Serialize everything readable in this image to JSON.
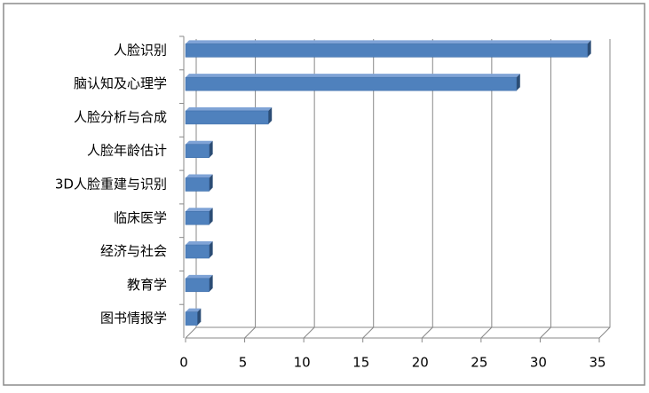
{
  "chart_data": {
    "type": "bar",
    "orientation": "horizontal",
    "categories": [
      "人脸识别",
      "脑认知及心理学",
      "人脸分析与合成",
      "人脸年龄估计",
      "3D人脸重建与识别",
      "临床医学",
      "经济与社会",
      "教育学",
      "图书情报学"
    ],
    "values": [
      34,
      28,
      7,
      2,
      2,
      2,
      2,
      2,
      1
    ],
    "color": "#4f81bd",
    "xlim": [
      0,
      35
    ],
    "xticks": [
      0,
      5,
      10,
      15,
      20,
      25,
      30,
      35
    ],
    "grid": true
  }
}
